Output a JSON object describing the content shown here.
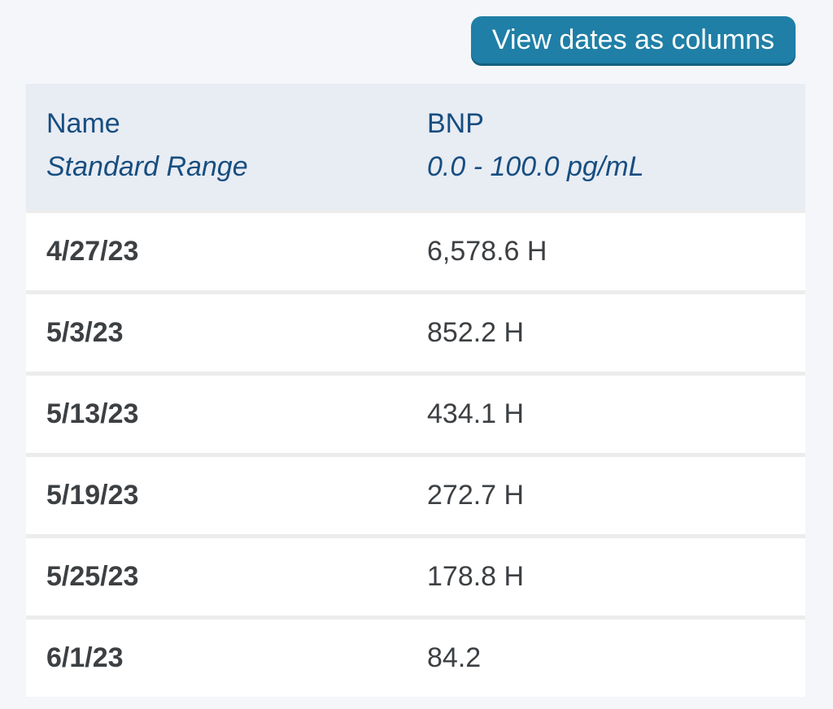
{
  "toolbar": {
    "view_columns_label": "View dates as columns"
  },
  "table": {
    "header": {
      "name_label": "Name",
      "range_label": "Standard Range",
      "test_name": "BNP",
      "test_range": "0.0 - 100.0 pg/mL"
    },
    "rows": [
      {
        "date": "4/27/23",
        "value": "6,578.6 H"
      },
      {
        "date": "5/3/23",
        "value": "852.2 H"
      },
      {
        "date": "5/13/23",
        "value": "434.1 H"
      },
      {
        "date": "5/19/23",
        "value": "272.7 H"
      },
      {
        "date": "5/25/23",
        "value": "178.8 H"
      },
      {
        "date": "6/1/23",
        "value": "84.2"
      }
    ]
  },
  "colors": {
    "accent": "#1f7fa6",
    "accent_dark": "#14607f",
    "navy_header_text": "#174e80",
    "page_bg": "#f4f6fa",
    "header_bg": "#e8ecf3",
    "row_bg": "#ffffff",
    "separator": "#ececec",
    "text_gray": "#3d4043"
  }
}
